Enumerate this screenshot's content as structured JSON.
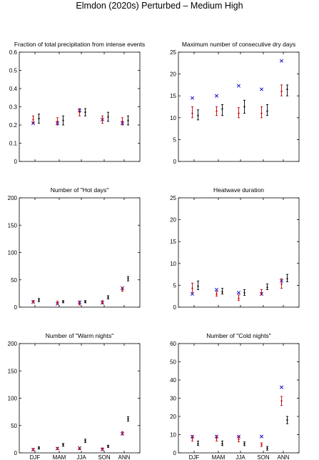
{
  "figure_title": "Elmdon (2020s) Perturbed – Medium High",
  "colors": {
    "observed": "#0000cc",
    "control": "#cc0000",
    "future": "#000000"
  },
  "chart_data": [
    {
      "type": "scatter",
      "title": "Fraction of total precipitation from intense events",
      "categories": [],
      "ylim": [
        0,
        0.6
      ],
      "yticks": [
        "0",
        "0.1",
        "0.2",
        "0.3",
        "0.4",
        "0.5",
        "0.6"
      ],
      "grid": false,
      "series": [
        {
          "marker": "cross",
          "values": [
            0.21,
            0.21,
            0.28,
            0.23,
            0.21
          ]
        },
        {
          "marker": "errorbar",
          "values": [
            0.23,
            0.22,
            0.27,
            0.23,
            0.22
          ],
          "low": [
            0.21,
            0.2,
            0.25,
            0.21,
            0.2
          ],
          "high": [
            0.25,
            0.24,
            0.29,
            0.25,
            0.24
          ]
        },
        {
          "marker": "errorbar",
          "values": [
            0.235,
            0.225,
            0.27,
            0.245,
            0.225
          ],
          "low": [
            0.21,
            0.2,
            0.25,
            0.22,
            0.2
          ],
          "high": [
            0.26,
            0.25,
            0.29,
            0.27,
            0.25
          ]
        }
      ]
    },
    {
      "type": "scatter",
      "title": "Maximum number of consecutive dry days",
      "categories": [],
      "ylim": [
        0,
        25
      ],
      "yticks": [
        "0",
        "5",
        "10",
        "15",
        "20",
        "25"
      ],
      "grid": false,
      "series": [
        {
          "marker": "cross",
          "values": [
            14.5,
            15,
            17.3,
            16.5,
            23
          ]
        },
        {
          "marker": "errorbar",
          "values": [
            11,
            11.5,
            11,
            11,
            16
          ],
          "low": [
            10,
            10.5,
            10,
            10,
            15
          ],
          "high": [
            12.5,
            12.5,
            12.3,
            12.5,
            17.5
          ]
        },
        {
          "marker": "errorbar",
          "values": [
            10.5,
            12,
            12.5,
            11.5,
            16.5
          ],
          "low": [
            9.5,
            10.5,
            11,
            10.5,
            15
          ],
          "high": [
            11.8,
            13,
            14,
            13,
            17.5
          ]
        }
      ]
    },
    {
      "type": "scatter",
      "title": "Number of \"Hot days\"",
      "categories": [],
      "ylim": [
        0,
        200
      ],
      "yticks": [
        "0",
        "50",
        "100",
        "150",
        "200"
      ],
      "grid": false,
      "series": [
        {
          "marker": "cross",
          "values": [
            9,
            6,
            9,
            8,
            35
          ]
        },
        {
          "marker": "errorbar",
          "values": [
            10,
            8,
            6,
            9,
            32
          ],
          "low": [
            8,
            5,
            4,
            6,
            29
          ],
          "high": [
            12,
            11,
            11,
            12,
            36
          ]
        },
        {
          "marker": "errorbar",
          "values": [
            13,
            10,
            10,
            18,
            52
          ],
          "low": [
            10,
            8,
            8,
            15,
            48
          ],
          "high": [
            16,
            12,
            12,
            21,
            56
          ]
        }
      ]
    },
    {
      "type": "scatter",
      "title": "Heatwave duration",
      "categories": [],
      "ylim": [
        0,
        25
      ],
      "yticks": [
        "0",
        "5",
        "10",
        "15",
        "20",
        "25"
      ],
      "grid": false,
      "series": [
        {
          "marker": "cross",
          "values": [
            3,
            4,
            3.3,
            3,
            6
          ]
        },
        {
          "marker": "errorbar",
          "values": [
            4.3,
            3,
            2,
            3.3,
            5.3
          ],
          "low": [
            3.3,
            2.5,
            1.5,
            2.8,
            4.3
          ],
          "high": [
            5.5,
            3.6,
            2.8,
            4,
            6.5
          ]
        },
        {
          "marker": "errorbar",
          "values": [
            4.8,
            3.5,
            3.3,
            4.5,
            6.5
          ],
          "low": [
            4,
            3,
            2.7,
            4,
            5.8
          ],
          "high": [
            6,
            4.3,
            4,
            5.3,
            7.5
          ]
        }
      ]
    },
    {
      "type": "scatter",
      "title": "Number of \"Warm nights\"",
      "categories": [
        "DJF",
        "MAM",
        "JJA",
        "SON",
        "ANN"
      ],
      "ylim": [
        0,
        200
      ],
      "yticks": [
        "0",
        "50",
        "100",
        "150",
        "200"
      ],
      "grid": false,
      "series": [
        {
          "marker": "cross",
          "values": [
            6,
            8,
            9,
            6,
            35
          ]
        },
        {
          "marker": "errorbar",
          "values": [
            6,
            8,
            8,
            7,
            36
          ],
          "low": [
            4,
            6,
            6,
            5,
            33
          ],
          "high": [
            8,
            10,
            10,
            9,
            39
          ]
        },
        {
          "marker": "errorbar",
          "values": [
            9,
            15,
            22,
            12,
            62
          ],
          "low": [
            7,
            12,
            19,
            10,
            58
          ],
          "high": [
            11,
            17,
            25,
            14,
            66
          ]
        }
      ]
    },
    {
      "type": "scatter",
      "title": "Number of \"Cold nights\"",
      "categories": [
        "DJF",
        "MAM",
        "JJA",
        "SON",
        "ANN"
      ],
      "ylim": [
        0,
        60
      ],
      "yticks": [
        "0",
        "10",
        "20",
        "30",
        "40",
        "50",
        "60"
      ],
      "grid": false,
      "series": [
        {
          "marker": "cross",
          "values": [
            9,
            9,
            9,
            9,
            36
          ]
        },
        {
          "marker": "errorbar",
          "values": [
            8,
            8,
            7.5,
            4.5,
            28.5
          ],
          "low": [
            6.5,
            6.5,
            6,
            3.5,
            26
          ],
          "high": [
            9.5,
            9.5,
            9,
            5.5,
            31
          ]
        },
        {
          "marker": "errorbar",
          "values": [
            5,
            5,
            5,
            2.5,
            18
          ],
          "low": [
            4,
            4,
            4,
            1.5,
            16
          ],
          "high": [
            6.5,
            6.5,
            6,
            3.5,
            20
          ]
        }
      ]
    }
  ]
}
